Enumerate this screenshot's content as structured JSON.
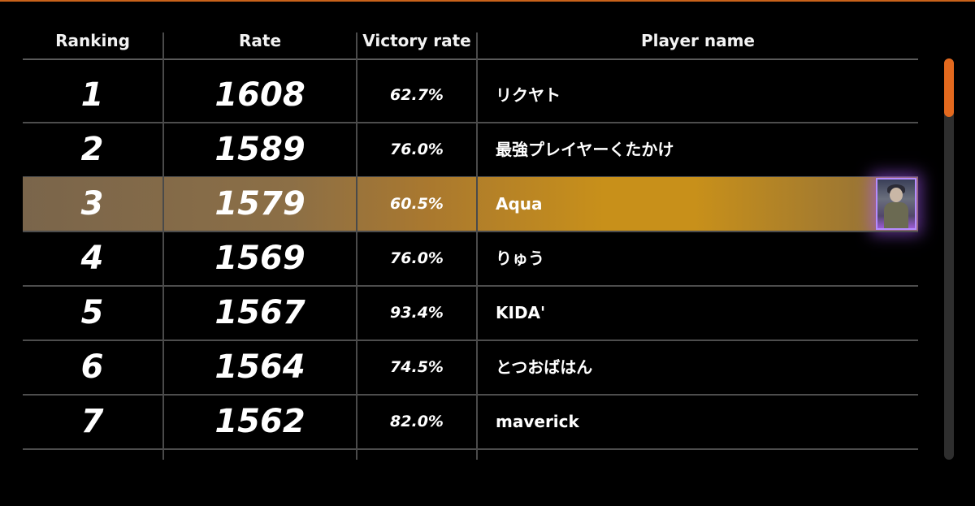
{
  "headers": {
    "ranking": "Ranking",
    "rate": "Rate",
    "victory_rate": "Victory rate",
    "player_name": "Player name"
  },
  "rows": [
    {
      "rank": "1",
      "rate": "1608",
      "victory": "62.7%",
      "player": "リクヤト",
      "highlight": false
    },
    {
      "rank": "2",
      "rate": "1589",
      "victory": "76.0%",
      "player": "最強プレイヤーくたかけ",
      "highlight": false
    },
    {
      "rank": "3",
      "rate": "1579",
      "victory": "60.5%",
      "player": "Aqua",
      "highlight": true,
      "avatar": "player-avatar"
    },
    {
      "rank": "4",
      "rate": "1569",
      "victory": "76.0%",
      "player": "りゅう",
      "highlight": false
    },
    {
      "rank": "5",
      "rate": "1567",
      "victory": "93.4%",
      "player": "KIDA'",
      "highlight": false
    },
    {
      "rank": "6",
      "rate": "1564",
      "victory": "74.5%",
      "player": "とつおばはん",
      "highlight": false
    },
    {
      "rank": "7",
      "rate": "1562",
      "victory": "82.0%",
      "player": "maverick",
      "highlight": false
    }
  ],
  "colors": {
    "accent": "#e3691e",
    "highlight_gold": "#c8901a",
    "avatar_glow": "#b58cff"
  },
  "scrollbar": {
    "position": 0
  }
}
